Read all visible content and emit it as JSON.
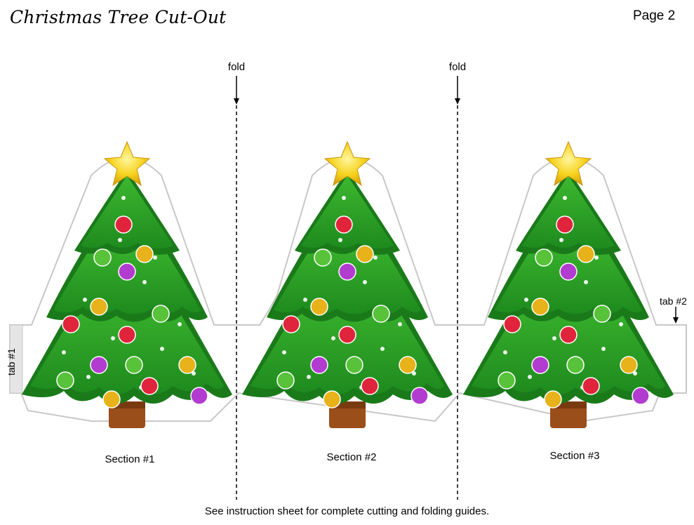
{
  "header": {
    "title": "Christmas Tree Cut-Out",
    "page": "Page 2"
  },
  "folds": [
    {
      "label": "fold"
    },
    {
      "label": "fold"
    }
  ],
  "tabs": [
    {
      "label": "tab #1"
    },
    {
      "label": "tab #2"
    }
  ],
  "sections": [
    {
      "label": "Section #1"
    },
    {
      "label": "Section #2"
    },
    {
      "label": "Section #3"
    }
  ],
  "footer": {
    "text": "See instruction sheet for complete cutting and folding guides."
  },
  "colors": {
    "tree_dark": "#1a7a1a",
    "tree_light": "#3db82f",
    "star": "#f7d31e",
    "trunk": "#9a4e1a",
    "outline": "#c8c8c8"
  },
  "ornament_colors": [
    "#e0243c",
    "#58c23a",
    "#e8b21a",
    "#b23ccf"
  ]
}
